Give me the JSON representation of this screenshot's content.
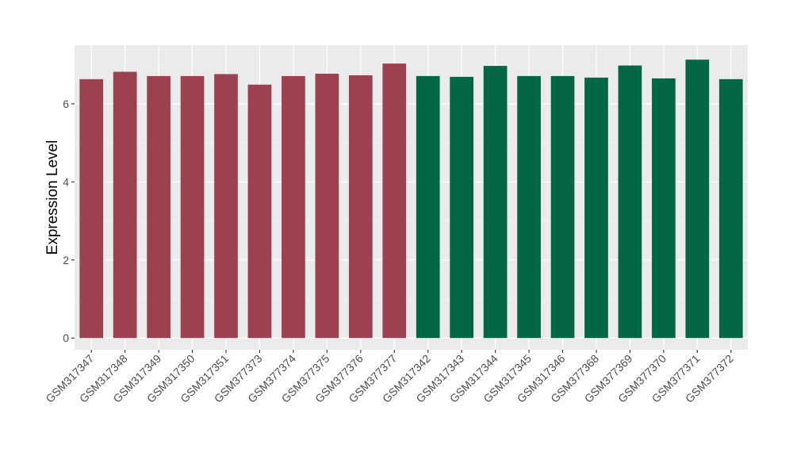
{
  "chart_data": {
    "type": "bar",
    "title": "",
    "xlabel": "",
    "ylabel": "Expression Level",
    "ylim": [
      -0.3,
      7.5
    ],
    "yticks": [
      0,
      2,
      4,
      6
    ],
    "grid": true,
    "legend": "none",
    "categories": [
      "GSM317347",
      "GSM317348",
      "GSM317349",
      "GSM317350",
      "GSM317351",
      "GSM377373",
      "GSM377374",
      "GSM377375",
      "GSM377376",
      "GSM377377",
      "GSM317342",
      "GSM317343",
      "GSM317344",
      "GSM317345",
      "GSM317346",
      "GSM377368",
      "GSM377369",
      "GSM377370",
      "GSM377371",
      "GSM377372"
    ],
    "values": [
      6.63,
      6.82,
      6.71,
      6.71,
      6.76,
      6.49,
      6.71,
      6.77,
      6.73,
      7.03,
      6.71,
      6.69,
      6.97,
      6.71,
      6.71,
      6.67,
      6.98,
      6.65,
      7.13,
      6.63
    ],
    "groups": [
      "a",
      "a",
      "a",
      "a",
      "a",
      "a",
      "a",
      "a",
      "a",
      "a",
      "b",
      "b",
      "b",
      "b",
      "b",
      "b",
      "b",
      "b",
      "b",
      "b"
    ],
    "colors": {
      "a": "#9b4150",
      "b": "#036644"
    }
  }
}
